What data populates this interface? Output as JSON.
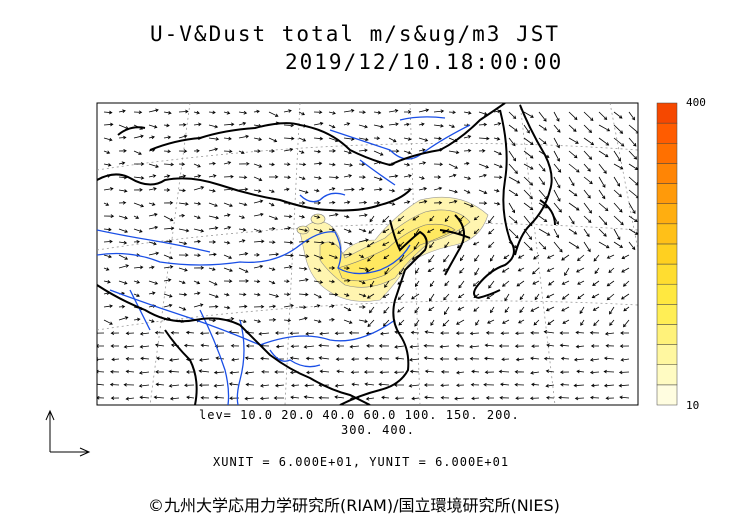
{
  "title": {
    "line1": "U-V&Dust total m/s&ug/m3 JST",
    "line2": "2019/12/10.18:00:00"
  },
  "colorbar": {
    "max_label": "400",
    "min_label": "10",
    "colors": [
      "#fffde0",
      "#fffbc2",
      "#fff7a0",
      "#fff27a",
      "#ffee55",
      "#ffe840",
      "#ffdd30",
      "#ffd020",
      "#ffc018",
      "#ffae10",
      "#ff9a0a",
      "#ff8505",
      "#ff7000",
      "#ff5c00",
      "#f54800"
    ]
  },
  "levels": {
    "line1": "lev= 10.0 20.0 40.0 60.0 100. 150. 200.",
    "line2": "300. 400."
  },
  "units": "XUNIT = 6.000E+01, YUNIT = 6.000E+01",
  "credit": "©九州大学応用力学研究所(RIAM)/国立環境研究所(NIES)",
  "colors": {
    "coast": "#000000",
    "rivers": "#1a4fe6",
    "dust_low": "#fff5b0",
    "dust_mid": "#ffee80",
    "grid": "#999999"
  }
}
